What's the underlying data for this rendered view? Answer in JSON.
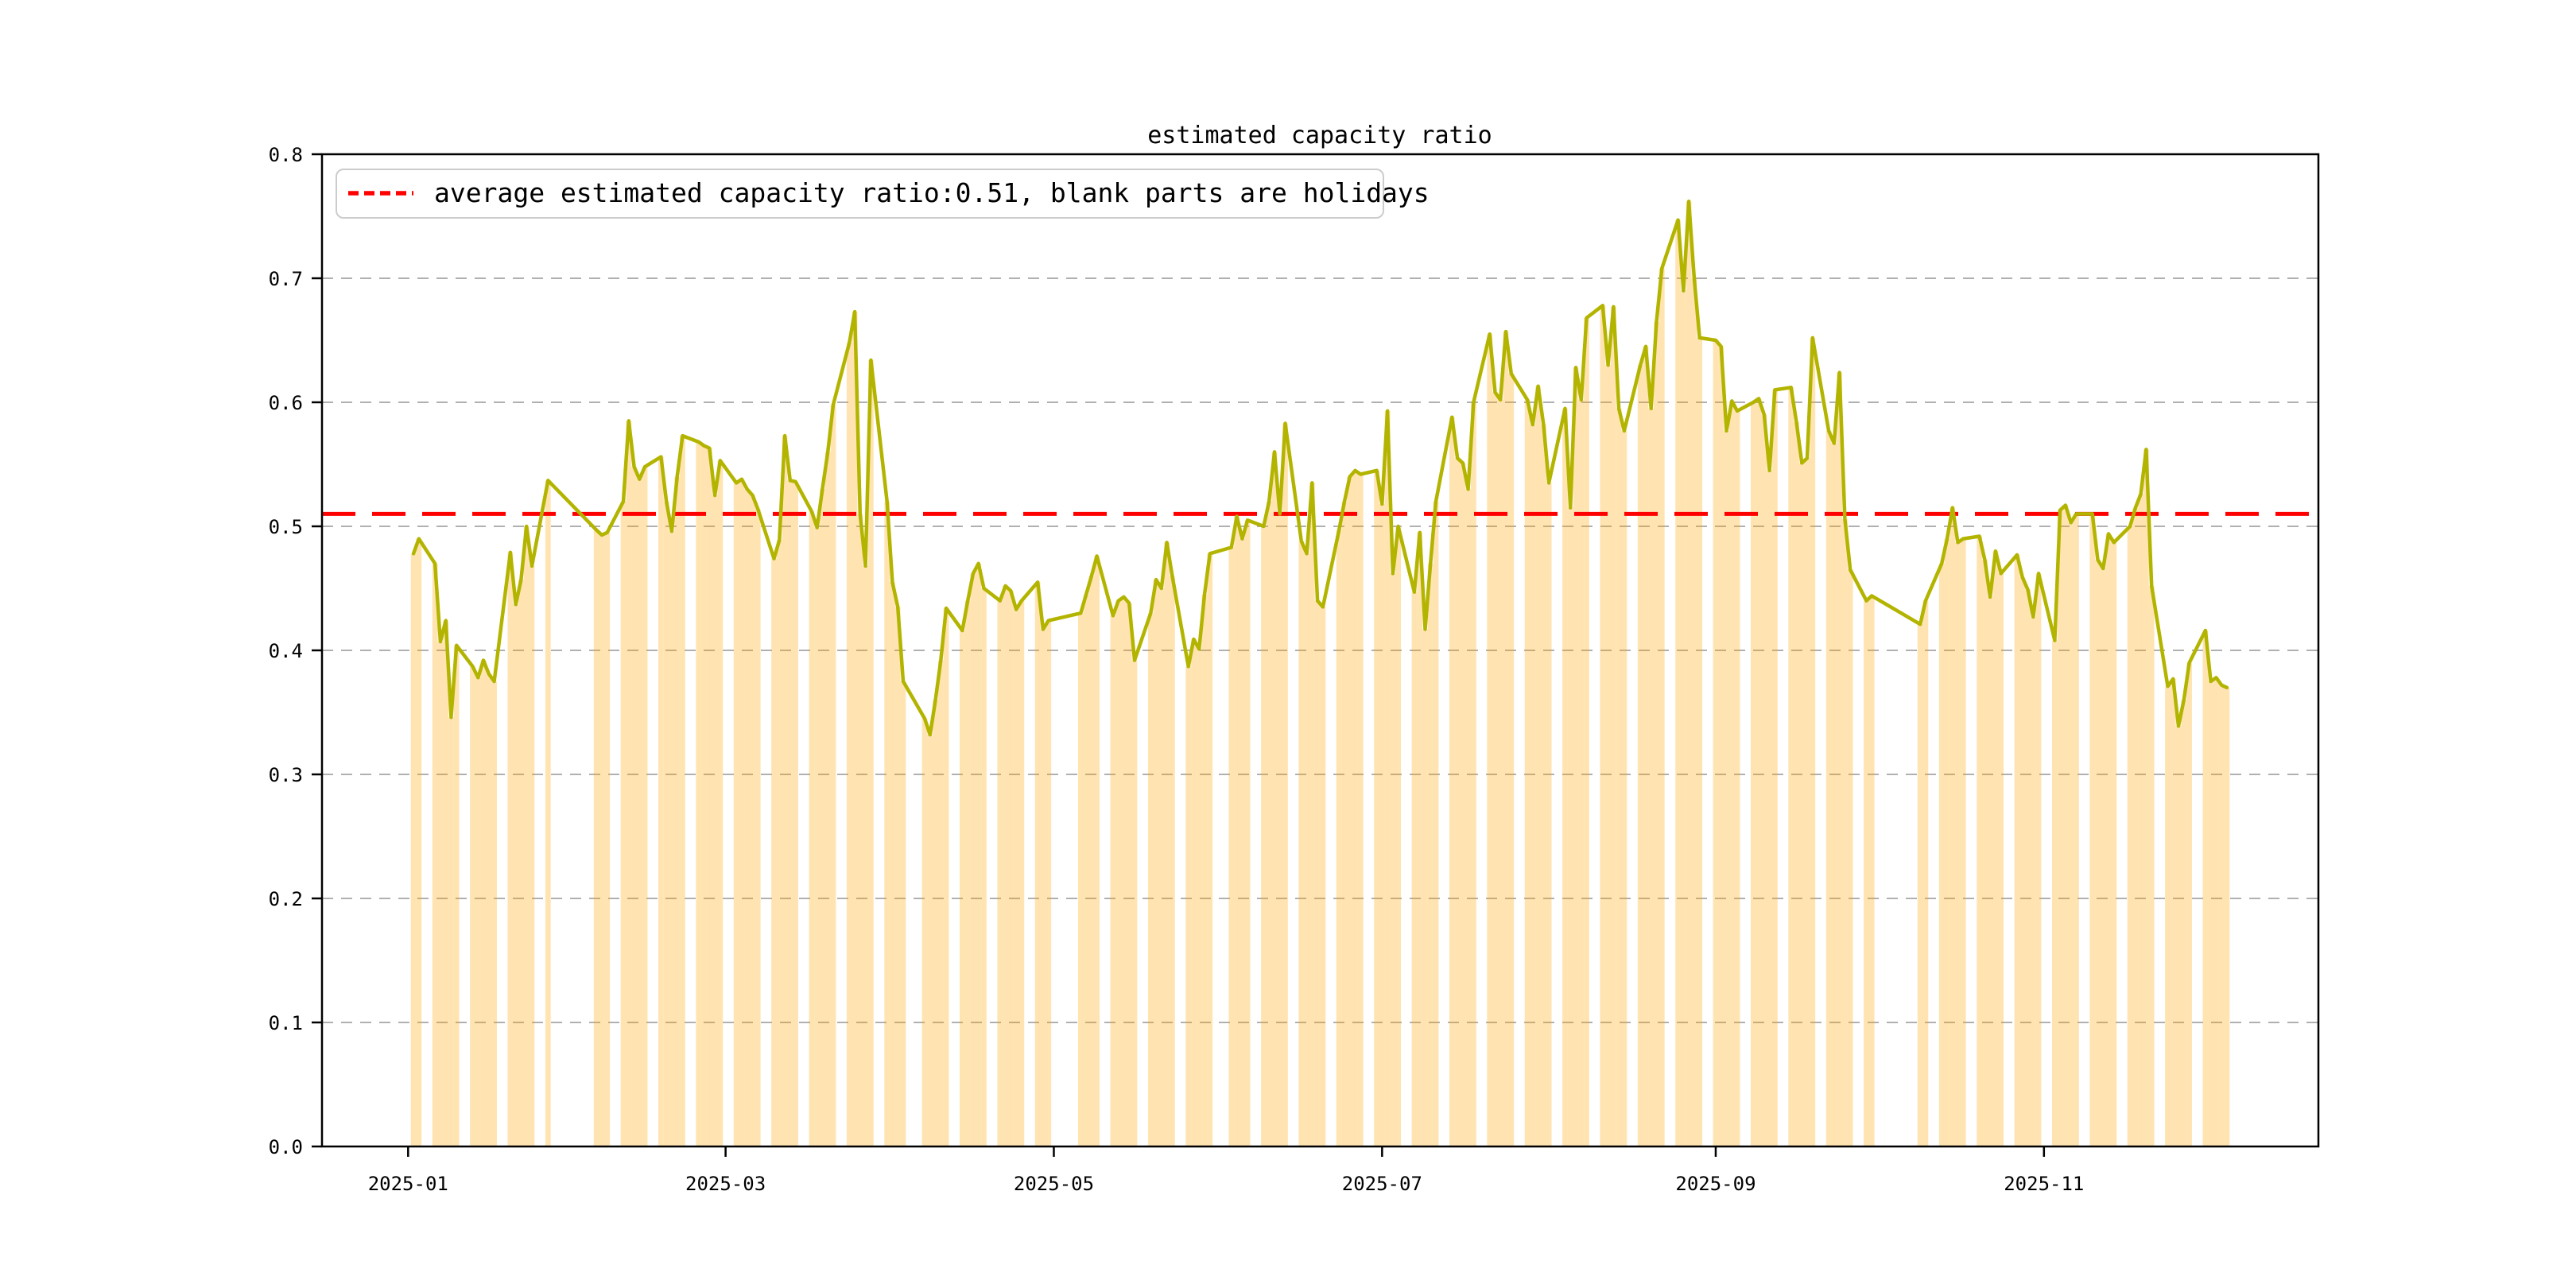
{
  "page": {
    "background": "#ffffff"
  },
  "chart_data": {
    "type": "line+bar",
    "title": "estimated capacity ratio",
    "legend_label": "average estimated capacity ratio:0.51, blank parts are holidays",
    "legend_position": "upper left",
    "avg_value": 0.51,
    "grid": true,
    "ylim": [
      0.0,
      0.8
    ],
    "yticks": [
      "0.0",
      "0.1",
      "0.2",
      "0.3",
      "0.4",
      "0.5",
      "0.6",
      "0.7",
      "0.8"
    ],
    "xticks": [
      {
        "label": "2025-01",
        "date": "2025-01-01"
      },
      {
        "label": "2025-03",
        "date": "2025-03-01"
      },
      {
        "label": "2025-05",
        "date": "2025-05-01"
      },
      {
        "label": "2025-07",
        "date": "2025-07-01"
      },
      {
        "label": "2025-09",
        "date": "2025-09-01"
      },
      {
        "label": "2025-11",
        "date": "2025-11-01"
      }
    ],
    "xlim": {
      "start": "2024-12-16",
      "end": "2025-12-21",
      "days": 371
    },
    "holidays_note": "blank parts are holidays (no bars on weekends and public holidays)",
    "colors": {
      "line": "#b3b400",
      "bar": "#FFA500",
      "bar_opacity": 0.3,
      "avg_line": "#ff0000",
      "grid": "#b0b0b0",
      "spine": "#000000",
      "legend_border": "#cccccc",
      "text": "#000000"
    },
    "series": [
      [
        "2025-01-02",
        0.478
      ],
      [
        "2025-01-03",
        0.49
      ],
      [
        "2025-01-06",
        0.47
      ],
      [
        "2025-01-07",
        0.407
      ],
      [
        "2025-01-08",
        0.424
      ],
      [
        "2025-01-09",
        0.346
      ],
      [
        "2025-01-10",
        0.404
      ],
      [
        "2025-01-13",
        0.387
      ],
      [
        "2025-01-14",
        0.378
      ],
      [
        "2025-01-15",
        0.392
      ],
      [
        "2025-01-16",
        0.381
      ],
      [
        "2025-01-17",
        0.375
      ],
      [
        "2025-01-20",
        0.479
      ],
      [
        "2025-01-21",
        0.437
      ],
      [
        "2025-01-22",
        0.457
      ],
      [
        "2025-01-23",
        0.5
      ],
      [
        "2025-01-24",
        0.468
      ],
      [
        "2025-01-27",
        0.537
      ],
      [
        "2025-02-05",
        0.497
      ],
      [
        "2025-02-06",
        0.493
      ],
      [
        "2025-02-07",
        0.495
      ],
      [
        "2025-02-10",
        0.52
      ],
      [
        "2025-02-11",
        0.585
      ],
      [
        "2025-02-12",
        0.548
      ],
      [
        "2025-02-13",
        0.538
      ],
      [
        "2025-02-14",
        0.548
      ],
      [
        "2025-02-17",
        0.556
      ],
      [
        "2025-02-18",
        0.52
      ],
      [
        "2025-02-19",
        0.496
      ],
      [
        "2025-02-20",
        0.54
      ],
      [
        "2025-02-21",
        0.573
      ],
      [
        "2025-02-24",
        0.568
      ],
      [
        "2025-02-25",
        0.565
      ],
      [
        "2025-02-26",
        0.563
      ],
      [
        "2025-02-27",
        0.525
      ],
      [
        "2025-02-28",
        0.553
      ],
      [
        "2025-03-03",
        0.535
      ],
      [
        "2025-03-04",
        0.538
      ],
      [
        "2025-03-05",
        0.53
      ],
      [
        "2025-03-06",
        0.525
      ],
      [
        "2025-03-07",
        0.514
      ],
      [
        "2025-03-10",
        0.474
      ],
      [
        "2025-03-11",
        0.489
      ],
      [
        "2025-03-12",
        0.573
      ],
      [
        "2025-03-13",
        0.537
      ],
      [
        "2025-03-14",
        0.536
      ],
      [
        "2025-03-17",
        0.512
      ],
      [
        "2025-03-18",
        0.499
      ],
      [
        "2025-03-19",
        0.53
      ],
      [
        "2025-03-20",
        0.56
      ],
      [
        "2025-03-21",
        0.598
      ],
      [
        "2025-03-24",
        0.648
      ],
      [
        "2025-03-25",
        0.673
      ],
      [
        "2025-03-26",
        0.51
      ],
      [
        "2025-03-27",
        0.468
      ],
      [
        "2025-03-28",
        0.634
      ],
      [
        "2025-03-31",
        0.52
      ],
      [
        "2025-04-01",
        0.455
      ],
      [
        "2025-04-02",
        0.435
      ],
      [
        "2025-04-03",
        0.375
      ],
      [
        "2025-04-07",
        0.345
      ],
      [
        "2025-04-08",
        0.332
      ],
      [
        "2025-04-09",
        0.36
      ],
      [
        "2025-04-10",
        0.392
      ],
      [
        "2025-04-11",
        0.434
      ],
      [
        "2025-04-14",
        0.416
      ],
      [
        "2025-04-15",
        0.44
      ],
      [
        "2025-04-16",
        0.462
      ],
      [
        "2025-04-17",
        0.47
      ],
      [
        "2025-04-18",
        0.45
      ],
      [
        "2025-04-21",
        0.44
      ],
      [
        "2025-04-22",
        0.452
      ],
      [
        "2025-04-23",
        0.448
      ],
      [
        "2025-04-24",
        0.433
      ],
      [
        "2025-04-25",
        0.44
      ],
      [
        "2025-04-28",
        0.455
      ],
      [
        "2025-04-29",
        0.417
      ],
      [
        "2025-04-30",
        0.424
      ],
      [
        "2025-05-06",
        0.43
      ],
      [
        "2025-05-07",
        0.445
      ],
      [
        "2025-05-08",
        0.46
      ],
      [
        "2025-05-09",
        0.476
      ],
      [
        "2025-05-12",
        0.428
      ],
      [
        "2025-05-13",
        0.44
      ],
      [
        "2025-05-14",
        0.443
      ],
      [
        "2025-05-15",
        0.438
      ],
      [
        "2025-05-16",
        0.392
      ],
      [
        "2025-05-19",
        0.43
      ],
      [
        "2025-05-20",
        0.457
      ],
      [
        "2025-05-21",
        0.45
      ],
      [
        "2025-05-22",
        0.487
      ],
      [
        "2025-05-23",
        0.46
      ],
      [
        "2025-05-26",
        0.387
      ],
      [
        "2025-05-27",
        0.409
      ],
      [
        "2025-05-28",
        0.401
      ],
      [
        "2025-05-29",
        0.445
      ],
      [
        "2025-05-30",
        0.478
      ],
      [
        "2025-06-03",
        0.483
      ],
      [
        "2025-06-04",
        0.508
      ],
      [
        "2025-06-05",
        0.49
      ],
      [
        "2025-06-06",
        0.505
      ],
      [
        "2025-06-09",
        0.5
      ],
      [
        "2025-06-10",
        0.52
      ],
      [
        "2025-06-11",
        0.56
      ],
      [
        "2025-06-12",
        0.51
      ],
      [
        "2025-06-13",
        0.583
      ],
      [
        "2025-06-16",
        0.488
      ],
      [
        "2025-06-17",
        0.478
      ],
      [
        "2025-06-18",
        0.535
      ],
      [
        "2025-06-19",
        0.44
      ],
      [
        "2025-06-20",
        0.435
      ],
      [
        "2025-06-23",
        0.497
      ],
      [
        "2025-06-24",
        0.52
      ],
      [
        "2025-06-25",
        0.54
      ],
      [
        "2025-06-26",
        0.545
      ],
      [
        "2025-06-27",
        0.542
      ],
      [
        "2025-06-30",
        0.545
      ],
      [
        "2025-07-01",
        0.518
      ],
      [
        "2025-07-02",
        0.593
      ],
      [
        "2025-07-03",
        0.462
      ],
      [
        "2025-07-04",
        0.5
      ],
      [
        "2025-07-07",
        0.447
      ],
      [
        "2025-07-08",
        0.495
      ],
      [
        "2025-07-09",
        0.417
      ],
      [
        "2025-07-10",
        0.47
      ],
      [
        "2025-07-11",
        0.52
      ],
      [
        "2025-07-14",
        0.588
      ],
      [
        "2025-07-15",
        0.555
      ],
      [
        "2025-07-16",
        0.551
      ],
      [
        "2025-07-17",
        0.53
      ],
      [
        "2025-07-18",
        0.6
      ],
      [
        "2025-07-21",
        0.655
      ],
      [
        "2025-07-22",
        0.608
      ],
      [
        "2025-07-23",
        0.602
      ],
      [
        "2025-07-24",
        0.657
      ],
      [
        "2025-07-25",
        0.623
      ],
      [
        "2025-07-28",
        0.602
      ],
      [
        "2025-07-29",
        0.582
      ],
      [
        "2025-07-30",
        0.613
      ],
      [
        "2025-07-31",
        0.582
      ],
      [
        "2025-08-01",
        0.535
      ],
      [
        "2025-08-04",
        0.595
      ],
      [
        "2025-08-05",
        0.515
      ],
      [
        "2025-08-06",
        0.628
      ],
      [
        "2025-08-07",
        0.602
      ],
      [
        "2025-08-08",
        0.668
      ],
      [
        "2025-08-11",
        0.678
      ],
      [
        "2025-08-12",
        0.63
      ],
      [
        "2025-08-13",
        0.677
      ],
      [
        "2025-08-14",
        0.595
      ],
      [
        "2025-08-15",
        0.577
      ],
      [
        "2025-08-18",
        0.63
      ],
      [
        "2025-08-19",
        0.645
      ],
      [
        "2025-08-20",
        0.595
      ],
      [
        "2025-08-21",
        0.665
      ],
      [
        "2025-08-22",
        0.708
      ],
      [
        "2025-08-25",
        0.747
      ],
      [
        "2025-08-26",
        0.69
      ],
      [
        "2025-08-27",
        0.762
      ],
      [
        "2025-08-28",
        0.7
      ],
      [
        "2025-08-29",
        0.652
      ],
      [
        "2025-09-01",
        0.65
      ],
      [
        "2025-09-02",
        0.645
      ],
      [
        "2025-09-03",
        0.577
      ],
      [
        "2025-09-04",
        0.601
      ],
      [
        "2025-09-05",
        0.593
      ],
      [
        "2025-09-08",
        0.6
      ],
      [
        "2025-09-09",
        0.603
      ],
      [
        "2025-09-10",
        0.59
      ],
      [
        "2025-09-11",
        0.545
      ],
      [
        "2025-09-12",
        0.61
      ],
      [
        "2025-09-15",
        0.612
      ],
      [
        "2025-09-16",
        0.584
      ],
      [
        "2025-09-17",
        0.551
      ],
      [
        "2025-09-18",
        0.555
      ],
      [
        "2025-09-19",
        0.652
      ],
      [
        "2025-09-22",
        0.577
      ],
      [
        "2025-09-23",
        0.567
      ],
      [
        "2025-09-24",
        0.624
      ],
      [
        "2025-09-25",
        0.506
      ],
      [
        "2025-09-26",
        0.465
      ],
      [
        "2025-09-29",
        0.44
      ],
      [
        "2025-09-30",
        0.444
      ],
      [
        "2025-10-09",
        0.421
      ],
      [
        "2025-10-10",
        0.44
      ],
      [
        "2025-10-13",
        0.47
      ],
      [
        "2025-10-14",
        0.49
      ],
      [
        "2025-10-15",
        0.515
      ],
      [
        "2025-10-16",
        0.487
      ],
      [
        "2025-10-17",
        0.49
      ],
      [
        "2025-10-20",
        0.492
      ],
      [
        "2025-10-21",
        0.473
      ],
      [
        "2025-10-22",
        0.443
      ],
      [
        "2025-10-23",
        0.48
      ],
      [
        "2025-10-24",
        0.462
      ],
      [
        "2025-10-27",
        0.477
      ],
      [
        "2025-10-28",
        0.459
      ],
      [
        "2025-10-29",
        0.449
      ],
      [
        "2025-10-30",
        0.427
      ],
      [
        "2025-10-31",
        0.462
      ],
      [
        "2025-11-03",
        0.408
      ],
      [
        "2025-11-04",
        0.513
      ],
      [
        "2025-11-05",
        0.517
      ],
      [
        "2025-11-06",
        0.503
      ],
      [
        "2025-11-07",
        0.51
      ],
      [
        "2025-11-10",
        0.51
      ],
      [
        "2025-11-11",
        0.473
      ],
      [
        "2025-11-12",
        0.466
      ],
      [
        "2025-11-13",
        0.494
      ],
      [
        "2025-11-14",
        0.487
      ],
      [
        "2025-11-17",
        0.5
      ],
      [
        "2025-11-18",
        0.515
      ],
      [
        "2025-11-19",
        0.526
      ],
      [
        "2025-11-20",
        0.562
      ],
      [
        "2025-11-21",
        0.452
      ],
      [
        "2025-11-24",
        0.371
      ],
      [
        "2025-11-25",
        0.377
      ],
      [
        "2025-11-26",
        0.339
      ],
      [
        "2025-11-27",
        0.36
      ],
      [
        "2025-11-28",
        0.39
      ],
      [
        "2025-12-01",
        0.416
      ],
      [
        "2025-12-02",
        0.375
      ],
      [
        "2025-12-03",
        0.378
      ],
      [
        "2025-12-04",
        0.372
      ],
      [
        "2025-12-05",
        0.37
      ]
    ]
  }
}
